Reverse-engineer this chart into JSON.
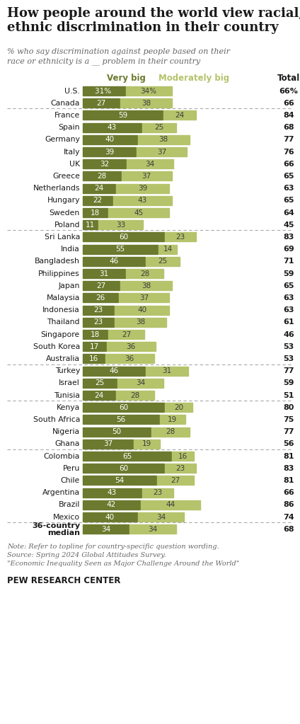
{
  "title": "How people around the world view racial,\nethnic discrimination in their country",
  "subtitle": "% who say discrimination against people based on their\nrace or ethnicity is a __ problem in their country",
  "col_header_very_big": "Very big",
  "col_header_mod_big": "Moderately big",
  "col_header_total": "Total",
  "color_very_big": "#6b7a2e",
  "color_mod_big": "#b5c36b",
  "background": "#ffffff",
  "countries": [
    "U.S.",
    "Canada",
    "France",
    "Spain",
    "Germany",
    "Italy",
    "UK",
    "Greece",
    "Netherlands",
    "Hungary",
    "Sweden",
    "Poland",
    "Sri Lanka",
    "India",
    "Bangladesh",
    "Philippines",
    "Japan",
    "Malaysia",
    "Indonesia",
    "Thailand",
    "Singapore",
    "South Korea",
    "Australia",
    "Turkey",
    "Israel",
    "Tunisia",
    "Kenya",
    "South Africa",
    "Nigeria",
    "Ghana",
    "Colombia",
    "Peru",
    "Chile",
    "Argentina",
    "Brazil",
    "Mexico",
    "36-country\nmedian"
  ],
  "very_big": [
    31,
    27,
    59,
    43,
    40,
    39,
    32,
    28,
    24,
    22,
    18,
    11,
    60,
    55,
    46,
    31,
    27,
    26,
    23,
    23,
    18,
    17,
    16,
    46,
    25,
    24,
    60,
    56,
    50,
    37,
    65,
    60,
    54,
    43,
    42,
    40,
    34
  ],
  "mod_big": [
    34,
    38,
    24,
    25,
    38,
    37,
    34,
    37,
    39,
    43,
    45,
    33,
    23,
    14,
    25,
    28,
    38,
    37,
    40,
    38,
    27,
    36,
    36,
    31,
    34,
    28,
    20,
    19,
    28,
    19,
    16,
    23,
    27,
    23,
    44,
    34,
    34
  ],
  "totals": [
    "66%",
    "66",
    "84",
    "68",
    "77",
    "76",
    "66",
    "65",
    "63",
    "65",
    "64",
    "45",
    "83",
    "69",
    "71",
    "59",
    "65",
    "63",
    "63",
    "61",
    "46",
    "53",
    "53",
    "77",
    "59",
    "51",
    "80",
    "75",
    "77",
    "56",
    "81",
    "83",
    "81",
    "66",
    "86",
    "74",
    "68"
  ],
  "separator_after": [
    1,
    11,
    22,
    25,
    29,
    35
  ],
  "note": "Note: Refer to topline for country-specific question wording.\nSource: Spring 2024 Global Attitudes Survey.\n\"Economic Inequality Seen as Major Challenge Around the World\"",
  "source_label": "PEW RESEARCH CENTER"
}
